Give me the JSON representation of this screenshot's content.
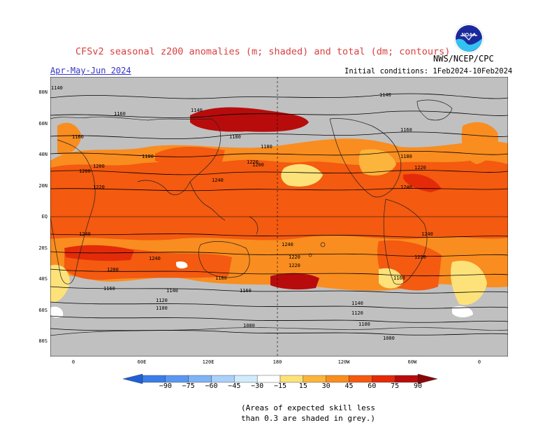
{
  "header": {
    "title": "CFSv2 seasonal z200 anomalies (m; shaded) and total (dm; contours)",
    "period": "Apr-May-Jun 2024",
    "initial_conditions": "Initial conditions: 1Feb2024-10Feb2024",
    "agency": "NWS/NCEP/CPC",
    "logo_text": "NOAA"
  },
  "map": {
    "lat_labels": [
      "80N",
      "60N",
      "40N",
      "20N",
      "EQ",
      "20S",
      "40S",
      "60S",
      "80S"
    ],
    "lon_labels": [
      "0",
      "60E",
      "120E",
      "180",
      "120W",
      "60W",
      "0"
    ],
    "contour_labels": [
      "1140",
      "1140",
      "1140",
      "1160",
      "1160",
      "1160",
      "1180",
      "1180",
      "1180",
      "1180",
      "1200",
      "1200",
      "1200",
      "1220",
      "1220",
      "1220",
      "1240",
      "1240",
      "1240",
      "1240",
      "1240",
      "1240",
      "1220",
      "1220",
      "1220",
      "1200",
      "1180",
      "1160",
      "1160",
      "1160",
      "1140",
      "1140",
      "1120",
      "1120",
      "1100",
      "1100",
      "1080",
      "1080"
    ],
    "colors": {
      "ocean_grey": "#c0c0c0",
      "land_line": "#222222",
      "contour": "#000000"
    }
  },
  "colorbar": {
    "ticks": [
      "−90",
      "−75",
      "−60",
      "−45",
      "−30",
      "−15",
      "15",
      "30",
      "45",
      "60",
      "75",
      "90"
    ],
    "colors": [
      "#1f5fd6",
      "#3b7de8",
      "#5a98f0",
      "#7fb3f5",
      "#a9d1fa",
      "#d0ecfc",
      "#ffffff",
      "#fde27a",
      "#fbb43c",
      "#f98d1f",
      "#f45a10",
      "#e32b0a",
      "#b80c0c",
      "#8a0707"
    ]
  },
  "note": {
    "line1": "(Areas of expected skill less",
    "line2": "than 0.3 are shaded in grey.)"
  }
}
